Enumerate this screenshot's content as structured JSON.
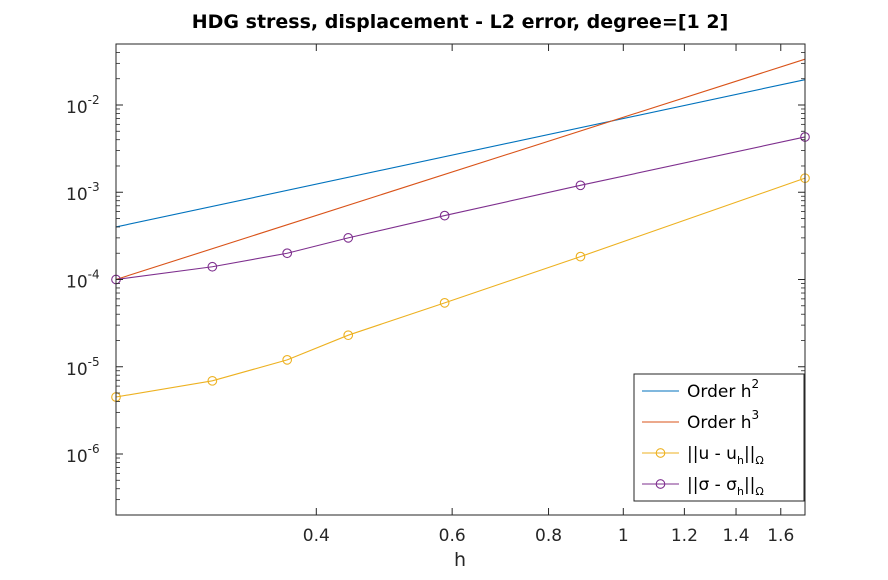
{
  "chart_data": {
    "type": "line",
    "title": "HDG stress, displacement - L2 error, degree=[1  2]",
    "xlabel": "h",
    "ylabel": "",
    "xscale": "log",
    "yscale": "log",
    "xlim": [
      0.22,
      1.72
    ],
    "ylim": [
      2e-07,
      0.05
    ],
    "grid": false,
    "legend_position": "bottom-right",
    "x_ticks": [
      0.4,
      0.6,
      0.8,
      1,
      1.2,
      1.4,
      1.6
    ],
    "x_tick_labels": [
      "0.4",
      "0.6",
      "0.8",
      "1",
      "1.2",
      "1.4",
      "1.6"
    ],
    "y_ticks": [
      1e-06,
      1e-05,
      0.0001,
      0.001,
      0.01
    ],
    "y_tick_labels": [
      {
        "base": "10",
        "exp": "-6"
      },
      {
        "base": "10",
        "exp": "-5"
      },
      {
        "base": "10",
        "exp": "-4"
      },
      {
        "base": "10",
        "exp": "-3"
      },
      {
        "base": "10",
        "exp": "-2"
      }
    ],
    "series": [
      {
        "name": "Order h2",
        "legend": {
          "main": "Order h",
          "sup": "2"
        },
        "color": "#0072bd",
        "marker": "none",
        "x": [
          0.22,
          1.72
        ],
        "y": [
          0.0004,
          0.0195
        ]
      },
      {
        "name": "Order h3",
        "legend": {
          "main": "Order h",
          "sup": "3"
        },
        "color": "#d95319",
        "marker": "none",
        "x": [
          0.22,
          1.72
        ],
        "y": [
          0.0001,
          0.0335
        ]
      },
      {
        "name": "||u - uh||Ω",
        "legend": {
          "pre": "||u - u",
          "sub": "h",
          "mid": "||",
          "sub2": "Ω"
        },
        "color": "#edb120",
        "marker": "circle",
        "x": [
          0.22,
          0.2933,
          0.3667,
          0.44,
          0.5867,
          0.88,
          1.72
        ],
        "y": [
          4.5e-06,
          6.9e-06,
          1.2e-05,
          2.3e-05,
          5.4e-05,
          0.000183,
          0.00145
        ]
      },
      {
        "name": "||σ - σh||Ω",
        "legend": {
          "pre": "||σ - σ",
          "sub": "h",
          "mid": "||",
          "sub2": "Ω"
        },
        "color": "#7e2f8e",
        "marker": "circle",
        "x": [
          0.22,
          0.2933,
          0.3667,
          0.44,
          0.5867,
          0.88,
          1.72
        ],
        "y": [
          0.0001,
          0.00014,
          0.0002,
          0.0003,
          0.00054,
          0.0012,
          0.0043
        ]
      }
    ]
  }
}
